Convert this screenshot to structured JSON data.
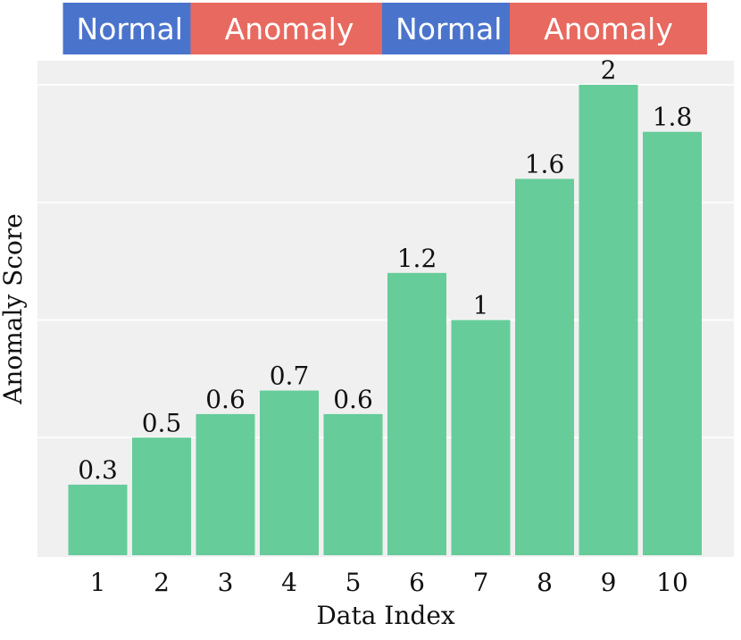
{
  "chart_data": {
    "type": "bar",
    "xlabel": "Data Index",
    "ylabel": "Anomaly Score",
    "categories": [
      "1",
      "2",
      "3",
      "4",
      "5",
      "6",
      "7",
      "8",
      "9",
      "10"
    ],
    "values": [
      0.3,
      0.5,
      0.6,
      0.7,
      0.6,
      1.2,
      1.0,
      1.6,
      2.0,
      1.8
    ],
    "data_labels": [
      "0.3",
      "0.5",
      "0.6",
      "0.7",
      "0.6",
      "1.2",
      "1",
      "1.6",
      "2",
      "1.8"
    ],
    "ylim": [
      0,
      2.1
    ],
    "grid": true,
    "y_tick_labels_shown": false,
    "bar_color": "#66cc99",
    "background_color": "#f0f0f0",
    "grid_color": "#ffffff",
    "segments": [
      {
        "label": "Normal",
        "color": "#4a74cc",
        "from_index": 1,
        "to_index": 2
      },
      {
        "label": "Anomaly",
        "color": "#e8695f",
        "from_index": 3,
        "to_index": 5
      },
      {
        "label": "Normal",
        "color": "#4a74cc",
        "from_index": 6,
        "to_index": 7
      },
      {
        "label": "Anomaly",
        "color": "#e8695f",
        "from_index": 8,
        "to_index": 10
      }
    ]
  }
}
